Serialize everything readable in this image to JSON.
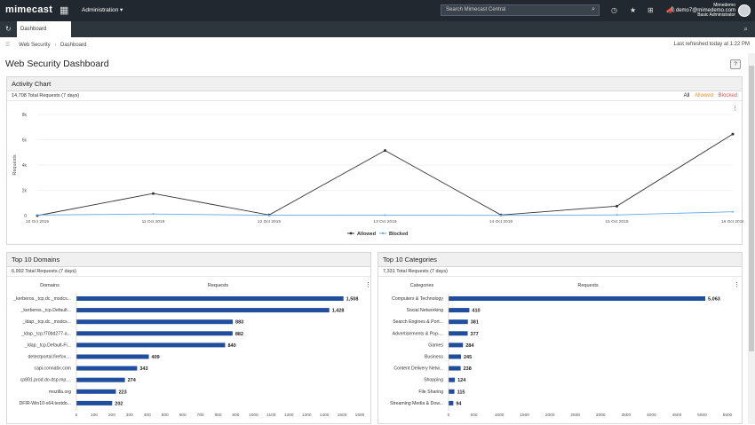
{
  "app": {
    "logo": "mimecast",
    "admin_menu": "Administration ▾",
    "search_placeholder": "Search Mimecast Central",
    "user_org": "Mimedemo",
    "user_email": "demo7@mimedemo.com",
    "user_role": "Basic Administrator"
  },
  "tabs": {
    "active": "Dashboard"
  },
  "breadcrumb": {
    "root": "Web Security",
    "sep": "›",
    "current": "Dashboard"
  },
  "refreshed": "Last refreshed today at 1:22 PM",
  "page_title": "Web Security Dashboard",
  "activity": {
    "title": "Activity Chart",
    "total": "14,708 Total Requests (7 days)",
    "filters": {
      "all": "All",
      "allowed": "Allowed",
      "blocked": "Blocked"
    },
    "legend_allowed": "Allowed",
    "legend_blocked": "Blocked",
    "ylabel": "Requests",
    "colors": {
      "allowed": "#333333",
      "blocked": "#6aaee8",
      "allowed_filter": "#e8912a",
      "blocked_filter": "#d9534f"
    }
  },
  "domains": {
    "title": "Top 10 Domains",
    "total": "6,992 Total Requests (7 days)",
    "col1": "Domains",
    "col2": "Requests"
  },
  "categories": {
    "title": "Top 10 Categories",
    "total": "7,331 Total Requests (7 days)",
    "col1": "Categories",
    "col2": "Requests"
  },
  "chart_data": [
    {
      "type": "line",
      "x": [
        "10 Oct 2019",
        "11 Oct 2019",
        "12 Oct 2019",
        "13 Oct 2019",
        "14 Oct 2019",
        "15 Oct 2019",
        "16 Oct 2019"
      ],
      "series": [
        {
          "name": "Allowed",
          "values": [
            0,
            1750,
            50,
            5150,
            50,
            750,
            6450
          ]
        },
        {
          "name": "Blocked",
          "values": [
            50,
            130,
            30,
            40,
            20,
            60,
            300
          ]
        }
      ],
      "ylabel": "Requests",
      "ylim": [
        0,
        8000
      ],
      "yticks": [
        "0",
        "2k",
        "4k",
        "6k",
        "8k"
      ]
    },
    {
      "type": "bar",
      "categories": [
        "_kerberos._tcp.dc._msdcs...",
        "_kerberos._tcp.Default...",
        "_ldap._tcp.dc._msdcs...",
        "_ldap._tcp.f70bd277-a...",
        "_ldap._tcp.Default-Fi...",
        "detectportal.firefox....",
        "capi.connatix.com",
        "cp801.prod.do.dsp.mp....",
        "mozilla.org",
        "DFIR-Win10-x64.testdo..."
      ],
      "values": [
        1508,
        1428,
        883,
        882,
        840,
        409,
        343,
        274,
        223,
        202
      ],
      "labels": [
        "1,508",
        "1,428",
        "883",
        "882",
        "840",
        "409",
        "343",
        "274",
        "223",
        "202"
      ],
      "xticks": [
        "0",
        "100",
        "200",
        "300",
        "400",
        "500",
        "600",
        "700",
        "800",
        "900",
        "1000",
        "1100",
        "1200",
        "1300",
        "1400",
        "1500",
        "1600"
      ],
      "xlim": [
        0,
        1600
      ],
      "color": "#1f4e9c"
    },
    {
      "type": "bar",
      "categories": [
        "Computers & Technology",
        "Social Networking",
        "Search Engines & Port...",
        "Advertisements & Pop-...",
        "Games",
        "Business",
        "Content Delivery Netw...",
        "Shopping",
        "File Sharing",
        "Streaming Media & Dow..."
      ],
      "values": [
        5063,
        410,
        381,
        377,
        284,
        245,
        238,
        124,
        115,
        94
      ],
      "labels": [
        "5,063",
        "410",
        "381",
        "377",
        "284",
        "245",
        "238",
        "124",
        "115",
        "94"
      ],
      "xticks": [
        "0",
        "500",
        "1000",
        "1500",
        "2000",
        "2500",
        "3000",
        "3500",
        "4000",
        "4500",
        "5000",
        "5500"
      ],
      "xlim": [
        0,
        5500
      ],
      "color": "#1f4e9c"
    }
  ]
}
